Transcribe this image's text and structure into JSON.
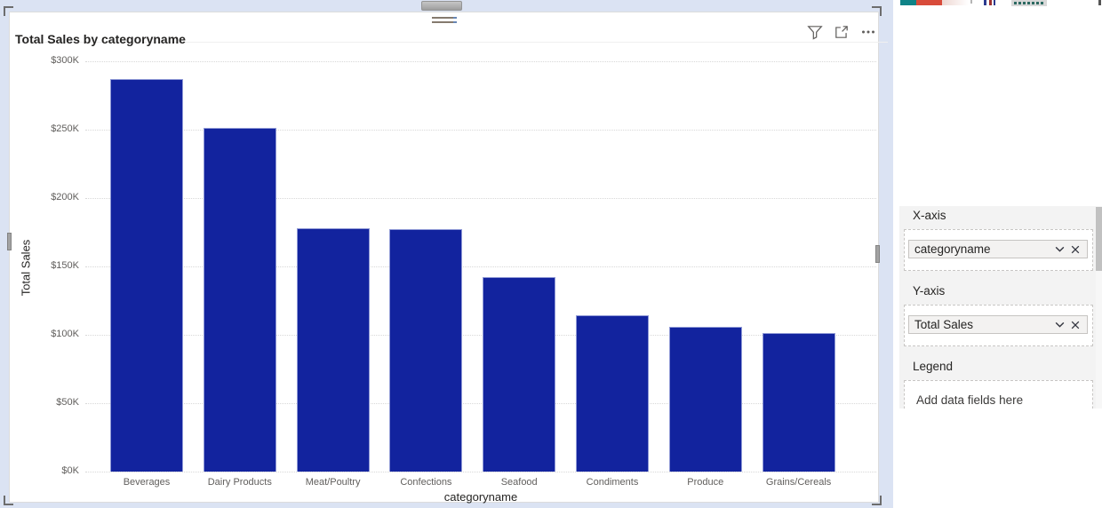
{
  "visual": {
    "title": "Total Sales by categoryname",
    "selected": true,
    "header_icons": [
      "filter-icon",
      "focus-mode-icon",
      "more-options-icon"
    ]
  },
  "chart_data": {
    "type": "bar",
    "title": "Total Sales by categoryname",
    "xlabel": "categoryname",
    "ylabel": "Total Sales",
    "categories": [
      "Beverages",
      "Dairy Products",
      "Meat/Poultry",
      "Confections",
      "Seafood",
      "Condiments",
      "Produce",
      "Grains/Cereals"
    ],
    "values": [
      287,
      251,
      178,
      177,
      142,
      114,
      106,
      101
    ],
    "values_unit": "thousands USD (read from y-axis)",
    "ylim": [
      0,
      300
    ],
    "yticks": [
      0,
      50,
      100,
      150,
      200,
      250,
      300
    ],
    "ytick_labels": [
      "$0K",
      "$50K",
      "$100K",
      "$150K",
      "$200K",
      "$250K",
      "$300K"
    ],
    "grid": "horizontal dotted",
    "legend": "none",
    "bar_color": "#12239E"
  },
  "pane": {
    "sections": [
      {
        "label": "X-axis",
        "field": "categoryname"
      },
      {
        "label": "Y-axis",
        "field": "Total Sales"
      },
      {
        "label": "Legend",
        "placeholder": "Add data fields here"
      }
    ]
  },
  "colors": {
    "bar": "#12239E",
    "canvas_background": "#dbe3f3",
    "gridline": "#d8d8d8",
    "axis_tick_label": "#605e5c",
    "title_text": "#252423",
    "well_section_background": "#f3f3f3",
    "pill_background": "#f3f2f1",
    "dashed_border": "#c8c6c4"
  }
}
